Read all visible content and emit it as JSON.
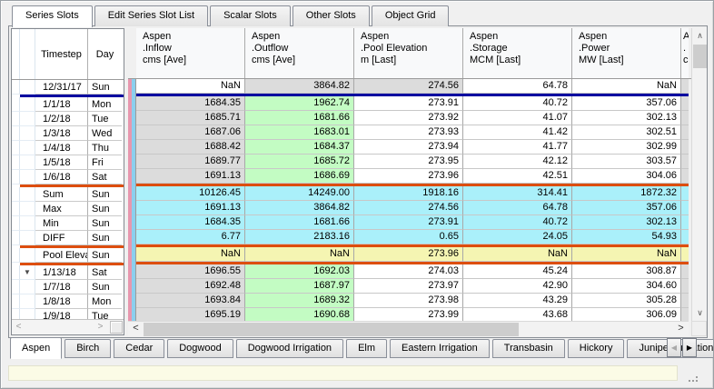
{
  "top_tabs": {
    "items": [
      {
        "label": "Series Slots",
        "active": true
      },
      {
        "label": "Edit Series Slot List",
        "active": false
      },
      {
        "label": "Scalar Slots",
        "active": false
      },
      {
        "label": "Other Slots",
        "active": false
      },
      {
        "label": "Object Grid",
        "active": false
      }
    ]
  },
  "grid": {
    "corner": {
      "timestep": "Timestep",
      "day": "Day"
    },
    "columns": [
      {
        "object": "Aspen",
        "slot": ".Inflow",
        "unit": "cms [Ave]"
      },
      {
        "object": "Aspen",
        "slot": ".Outflow",
        "unit": "cms [Ave]"
      },
      {
        "object": "Aspen",
        "slot": ".Pool Elevation",
        "unit": "m [Last]"
      },
      {
        "object": "Aspen",
        "slot": ".Storage",
        "unit": "MCM [Last]"
      },
      {
        "object": "Aspen",
        "slot": ".Power",
        "unit": "MW [Last]"
      }
    ],
    "partial_column": {
      "object": "A",
      "slot": ".",
      "unit": "c"
    },
    "rows": [
      {
        "timestep": "12/31/17",
        "day": "Sun",
        "marker": "",
        "cells": [
          "NaN",
          "3864.82",
          "274.56",
          "64.78",
          "NaN"
        ],
        "bgs": [
          "w",
          "g",
          "g",
          "w",
          "w"
        ],
        "partial_bg": "g",
        "sep_after": "navy"
      },
      {
        "timestep": "1/1/18",
        "day": "Mon",
        "marker": "",
        "cells": [
          "1684.35",
          "1962.74",
          "273.91",
          "40.72",
          "357.06"
        ],
        "bgs": [
          "g",
          "gr",
          "w",
          "w",
          "w"
        ],
        "partial_bg": "g",
        "sep_after": ""
      },
      {
        "timestep": "1/2/18",
        "day": "Tue",
        "marker": "",
        "cells": [
          "1685.71",
          "1681.66",
          "273.92",
          "41.07",
          "302.13"
        ],
        "bgs": [
          "g",
          "gr",
          "w",
          "w",
          "w"
        ],
        "partial_bg": "g",
        "sep_after": ""
      },
      {
        "timestep": "1/3/18",
        "day": "Wed",
        "marker": "",
        "cells": [
          "1687.06",
          "1683.01",
          "273.93",
          "41.42",
          "302.51"
        ],
        "bgs": [
          "g",
          "gr",
          "w",
          "w",
          "w"
        ],
        "partial_bg": "g",
        "sep_after": ""
      },
      {
        "timestep": "1/4/18",
        "day": "Thu",
        "marker": "",
        "cells": [
          "1688.42",
          "1684.37",
          "273.94",
          "41.77",
          "302.99"
        ],
        "bgs": [
          "g",
          "gr",
          "w",
          "w",
          "w"
        ],
        "partial_bg": "g",
        "sep_after": ""
      },
      {
        "timestep": "1/5/18",
        "day": "Fri",
        "marker": "",
        "cells": [
          "1689.77",
          "1685.72",
          "273.95",
          "42.12",
          "303.57"
        ],
        "bgs": [
          "g",
          "gr",
          "w",
          "w",
          "w"
        ],
        "partial_bg": "g",
        "sep_after": ""
      },
      {
        "timestep": "1/6/18",
        "day": "Sat",
        "marker": "",
        "cells": [
          "1691.13",
          "1686.69",
          "273.96",
          "42.51",
          "304.06"
        ],
        "bgs": [
          "g",
          "gr",
          "w",
          "w",
          "w"
        ],
        "partial_bg": "g",
        "sep_after": "orange"
      },
      {
        "timestep": "Sum",
        "day": "Sun",
        "marker": "",
        "cells": [
          "10126.45",
          "14249.00",
          "1918.16",
          "314.41",
          "1872.32"
        ],
        "bgs": [
          "c",
          "c",
          "c",
          "c",
          "c"
        ],
        "partial_bg": "c",
        "sep_after": ""
      },
      {
        "timestep": "Max",
        "day": "Sun",
        "marker": "",
        "cells": [
          "1691.13",
          "3864.82",
          "274.56",
          "64.78",
          "357.06"
        ],
        "bgs": [
          "c",
          "c",
          "c",
          "c",
          "c"
        ],
        "partial_bg": "c",
        "sep_after": ""
      },
      {
        "timestep": "Min",
        "day": "Sun",
        "marker": "",
        "cells": [
          "1684.35",
          "1681.66",
          "273.91",
          "40.72",
          "302.13"
        ],
        "bgs": [
          "c",
          "c",
          "c",
          "c",
          "c"
        ],
        "partial_bg": "c",
        "sep_after": ""
      },
      {
        "timestep": "DIFF",
        "day": "Sun",
        "marker": "",
        "cells": [
          "6.77",
          "2183.16",
          "0.65",
          "24.05",
          "54.93"
        ],
        "bgs": [
          "c",
          "c",
          "c",
          "c",
          "c"
        ],
        "partial_bg": "c",
        "sep_after": "orange"
      },
      {
        "timestep": "Pool Elevat",
        "day": "Sun",
        "marker": "",
        "cells": [
          "NaN",
          "NaN",
          "273.96",
          "NaN",
          "NaN"
        ],
        "bgs": [
          "y",
          "y",
          "y",
          "y",
          "y"
        ],
        "partial_bg": "y",
        "sep_after": "orange"
      },
      {
        "timestep": "1/13/18",
        "day": "Sat",
        "marker": "▼",
        "cells": [
          "1696.55",
          "1692.03",
          "274.03",
          "45.24",
          "308.87"
        ],
        "bgs": [
          "g",
          "gr",
          "w",
          "w",
          "w"
        ],
        "partial_bg": "g",
        "sep_after": ""
      },
      {
        "timestep": "1/7/18",
        "day": "Sun",
        "marker": "",
        "cells": [
          "1692.48",
          "1687.97",
          "273.97",
          "42.90",
          "304.60"
        ],
        "bgs": [
          "g",
          "gr",
          "w",
          "w",
          "w"
        ],
        "partial_bg": "g",
        "sep_after": ""
      },
      {
        "timestep": "1/8/18",
        "day": "Mon",
        "marker": "",
        "cells": [
          "1693.84",
          "1689.32",
          "273.98",
          "43.29",
          "305.28"
        ],
        "bgs": [
          "g",
          "gr",
          "w",
          "w",
          "w"
        ],
        "partial_bg": "g",
        "sep_after": ""
      },
      {
        "timestep": "1/9/18",
        "day": "Tue",
        "marker": "",
        "cells": [
          "1695.19",
          "1690.68",
          "273.99",
          "43.68",
          "306.09"
        ],
        "bgs": [
          "g",
          "gr",
          "w",
          "w",
          "w"
        ],
        "partial_bg": "g",
        "sep_after": ""
      }
    ]
  },
  "bottom_tabs": {
    "items": [
      {
        "label": "Aspen",
        "active": true
      },
      {
        "label": "Birch",
        "active": false
      },
      {
        "label": "Cedar",
        "active": false
      },
      {
        "label": "Dogwood",
        "active": false
      },
      {
        "label": "Dogwood Irrigation",
        "active": false
      },
      {
        "label": "Elm",
        "active": false
      },
      {
        "label": "Eastern Irrigation",
        "active": false
      },
      {
        "label": "Transbasin",
        "active": false
      },
      {
        "label": "Hickory",
        "active": false
      },
      {
        "label": "Juniper Irrigation",
        "active": false
      }
    ]
  },
  "icons": {
    "scroll_up": "∧",
    "scroll_down": "∨",
    "scroll_left": "<",
    "scroll_right": ">",
    "tab_prev": "◀",
    "tab_next": "▶"
  },
  "colors": {
    "separator_navy": "#0000a0",
    "separator_orange": "#dd4e0f",
    "flag_pink": "#e797ae",
    "flag_blue": "#8bcfee",
    "cell_gray": "#dcdcdc",
    "cell_green": "#c3fcc3",
    "cell_cyan": "#aaf0fa",
    "cell_yellow": "#f5f5b2",
    "status_strip": "#fbfbe6"
  }
}
